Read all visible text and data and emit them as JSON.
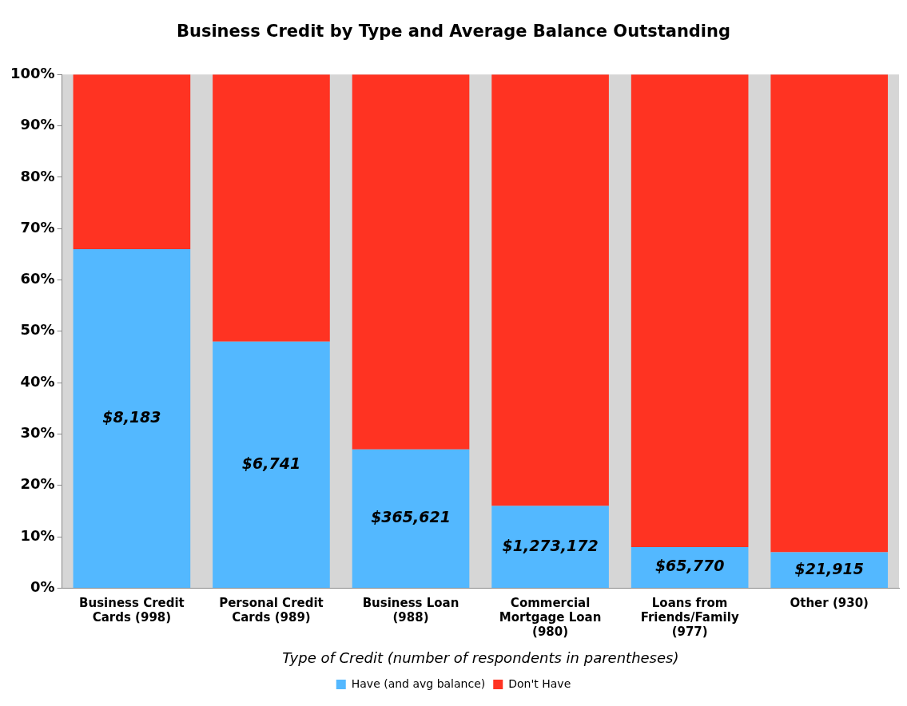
{
  "chart_data": {
    "type": "bar",
    "title": "Business Credit by Type and Average Balance Outstanding",
    "xlabel": "Type of Credit (number of respondents in parentheses)",
    "categories": [
      "Business Credit Cards (998)",
      "Personal Credit Cards (989)",
      "Business Loan (988)",
      "Commercial Mortgage Loan (980)",
      "Loans from Friends/Family (977)",
      "Other (930)"
    ],
    "stacked": true,
    "series": [
      {
        "name": "Have (and avg balance)",
        "color": "#53b8ff",
        "values": [
          66,
          48,
          27,
          16,
          8,
          7
        ]
      },
      {
        "name": "Don't Have",
        "color": "#ff3322",
        "values": [
          34,
          52,
          73,
          84,
          92,
          93
        ]
      }
    ],
    "ylim": [
      0,
      100
    ],
    "yticks": [
      {
        "value": 0,
        "label": "0%"
      },
      {
        "value": 10,
        "label": "10%"
      },
      {
        "value": 20,
        "label": "20%"
      },
      {
        "value": 30,
        "label": "30%"
      },
      {
        "value": 40,
        "label": "40%"
      },
      {
        "value": 50,
        "label": "50%"
      },
      {
        "value": 60,
        "label": "60%"
      },
      {
        "value": 70,
        "label": "70%"
      },
      {
        "value": 80,
        "label": "80%"
      },
      {
        "value": 90,
        "label": "90%"
      },
      {
        "value": 100,
        "label": "100%"
      }
    ],
    "annotations": [
      "$8,183",
      "$6,741",
      "$365,621",
      "$1,273,172",
      "$65,770",
      "$21,915"
    ],
    "grid": false,
    "legend": "bottom"
  }
}
